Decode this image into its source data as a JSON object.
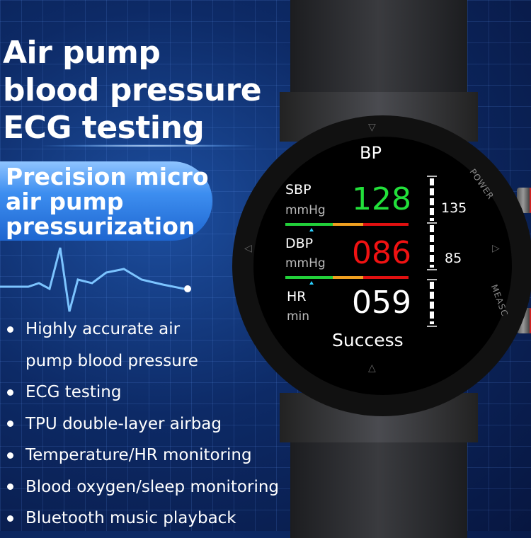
{
  "headline": [
    "Air pump",
    "blood pressure",
    "ECG testing"
  ],
  "subheadline": [
    "Precision micro",
    "air pump",
    "pressurization"
  ],
  "features": [
    [
      "Highly accurate air",
      "pump blood pressure"
    ],
    [
      "ECG testing"
    ],
    [
      "TPU double-layer airbag"
    ],
    [
      "Temperature/HR monitoring"
    ],
    [
      "Blood oxygen/sleep monitoring"
    ],
    [
      "Bluetooth music playback"
    ]
  ],
  "watch": {
    "screen_title": "BP",
    "sbp": {
      "label": "SBP",
      "unit": "mmHg",
      "value": "128",
      "color": "#22e03a"
    },
    "dbp": {
      "label": "DBP",
      "unit": "mmHg",
      "value": "086",
      "color": "#f01212"
    },
    "hr": {
      "label": "HR",
      "unit": "min",
      "value": "059",
      "color": "#ffffff"
    },
    "scale_labels": [
      "135",
      "85"
    ],
    "status": "Success",
    "button_labels": [
      "POWER",
      "MEASC"
    ],
    "bar_colors": [
      "#22d03a",
      "#f0a020",
      "#e01010"
    ]
  }
}
